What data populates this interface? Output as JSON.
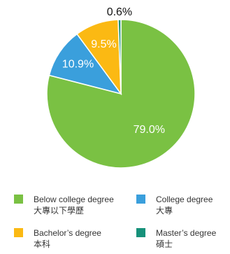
{
  "chart_data": {
    "type": "pie",
    "slices": [
      {
        "label": "Below college degree",
        "label_zh": "大專以下學歷",
        "value": 79.0,
        "display": "79.0%",
        "color": "#7ac143"
      },
      {
        "label": "College degree",
        "label_zh": "大專",
        "value": 10.9,
        "display": "10.9%",
        "color": "#3a9fdc"
      },
      {
        "label": "Bachelor’s degree",
        "label_zh": "本科",
        "value": 9.5,
        "display": "9.5%",
        "color": "#fbb913"
      },
      {
        "label": "Master’s degree",
        "label_zh": "碩士",
        "value": 0.6,
        "display": "0.6%",
        "color": "#16917a"
      }
    ],
    "legend_position": "bottom"
  }
}
